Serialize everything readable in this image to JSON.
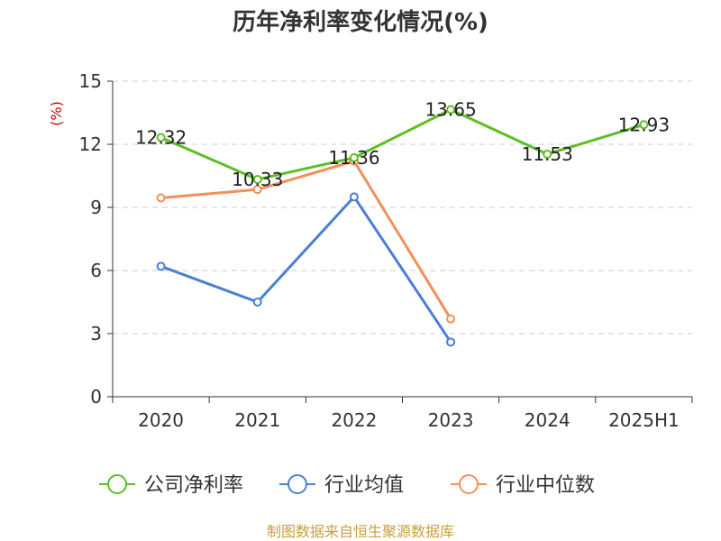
{
  "chart_data": {
    "type": "line",
    "title": "历年净利率变化情况(%)",
    "ylabel": "(%)",
    "xlabel": "",
    "categories": [
      "2020",
      "2021",
      "2022",
      "2023",
      "2024",
      "2025H1"
    ],
    "ylim": [
      0,
      15
    ],
    "yticks": [
      0,
      3,
      6,
      9,
      12,
      15
    ],
    "grid": true,
    "legend_position": "bottom",
    "series": [
      {
        "name": "公司净利率",
        "color": "#5cbf24",
        "values": [
          12.32,
          10.33,
          11.36,
          13.65,
          11.53,
          12.93
        ],
        "labels": [
          "12.32",
          "10.33",
          "11.36",
          "13.65",
          "11.53",
          "12.93"
        ]
      },
      {
        "name": "行业均值",
        "color": "#4a7fd6",
        "values": [
          6.2,
          4.5,
          9.5,
          2.6,
          null,
          null
        ]
      },
      {
        "name": "行业中位数",
        "color": "#f2905a",
        "values": [
          9.45,
          9.85,
          11.2,
          3.7,
          null,
          null
        ]
      }
    ]
  },
  "source": "制图数据来自恒生聚源数据库"
}
